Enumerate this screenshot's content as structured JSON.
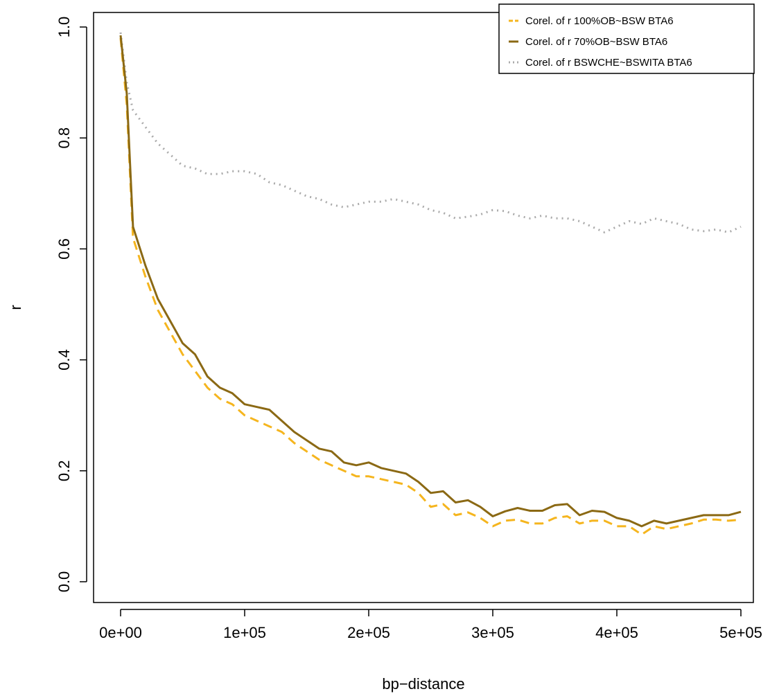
{
  "chart_data": {
    "type": "line",
    "xlabel": "bp−distance",
    "ylabel": "r",
    "xlim": [
      0,
      500000
    ],
    "ylim": [
      0.0,
      1.0
    ],
    "x_ticks": [
      0,
      100000,
      200000,
      300000,
      400000,
      500000
    ],
    "x_tick_labels": [
      "0e+00",
      "1e+05",
      "2e+05",
      "3e+05",
      "4e+05",
      "5e+05"
    ],
    "y_ticks": [
      0.0,
      0.2,
      0.4,
      0.6,
      0.8,
      1.0
    ],
    "y_tick_labels": [
      "0.0",
      "0.2",
      "0.4",
      "0.6",
      "0.8",
      "1.0"
    ],
    "grid": false,
    "legend_position": "top-right",
    "x": [
      0,
      5000,
      10000,
      20000,
      30000,
      40000,
      50000,
      60000,
      70000,
      80000,
      90000,
      100000,
      110000,
      120000,
      130000,
      140000,
      150000,
      160000,
      170000,
      180000,
      190000,
      200000,
      210000,
      220000,
      230000,
      240000,
      250000,
      260000,
      270000,
      280000,
      290000,
      300000,
      310000,
      320000,
      330000,
      340000,
      350000,
      360000,
      370000,
      380000,
      390000,
      400000,
      410000,
      420000,
      430000,
      440000,
      450000,
      460000,
      470000,
      480000,
      490000,
      500000
    ],
    "series": [
      {
        "name": "Corel. of r 100%OB~BSW BTA6",
        "color": "#f5b51e",
        "style": "dashed",
        "values": [
          0.98,
          0.86,
          0.62,
          0.55,
          0.49,
          0.45,
          0.41,
          0.38,
          0.35,
          0.33,
          0.32,
          0.3,
          0.29,
          0.28,
          0.27,
          0.25,
          0.235,
          0.22,
          0.21,
          0.2,
          0.19,
          0.19,
          0.185,
          0.18,
          0.175,
          0.16,
          0.135,
          0.14,
          0.12,
          0.125,
          0.115,
          0.1,
          0.11,
          0.112,
          0.105,
          0.105,
          0.115,
          0.118,
          0.105,
          0.11,
          0.11,
          0.1,
          0.1,
          0.085,
          0.1,
          0.095,
          0.1,
          0.105,
          0.112,
          0.112,
          0.11,
          0.112
        ]
      },
      {
        "name": "Corel. of r 70%OB~BSW BTA6",
        "color": "#8b6914",
        "style": "solid",
        "values": [
          0.985,
          0.88,
          0.64,
          0.57,
          0.51,
          0.47,
          0.43,
          0.41,
          0.37,
          0.35,
          0.34,
          0.32,
          0.315,
          0.31,
          0.29,
          0.27,
          0.255,
          0.24,
          0.235,
          0.215,
          0.21,
          0.215,
          0.205,
          0.2,
          0.195,
          0.18,
          0.16,
          0.163,
          0.143,
          0.147,
          0.135,
          0.118,
          0.127,
          0.133,
          0.128,
          0.128,
          0.138,
          0.14,
          0.12,
          0.128,
          0.126,
          0.115,
          0.11,
          0.1,
          0.11,
          0.105,
          0.11,
          0.115,
          0.12,
          0.12,
          0.12,
          0.126
        ]
      },
      {
        "name": "Corel. of r BSWCHE~BSWITA BTA6",
        "color": "#aaaaaa",
        "style": "dotted",
        "values": [
          0.99,
          0.9,
          0.85,
          0.82,
          0.79,
          0.77,
          0.75,
          0.745,
          0.735,
          0.735,
          0.74,
          0.74,
          0.735,
          0.72,
          0.715,
          0.705,
          0.695,
          0.69,
          0.68,
          0.675,
          0.68,
          0.685,
          0.685,
          0.69,
          0.685,
          0.68,
          0.67,
          0.665,
          0.655,
          0.658,
          0.662,
          0.67,
          0.668,
          0.66,
          0.655,
          0.66,
          0.655,
          0.655,
          0.65,
          0.64,
          0.63,
          0.64,
          0.65,
          0.645,
          0.655,
          0.65,
          0.645,
          0.635,
          0.632,
          0.635,
          0.63,
          0.64
        ]
      }
    ]
  }
}
